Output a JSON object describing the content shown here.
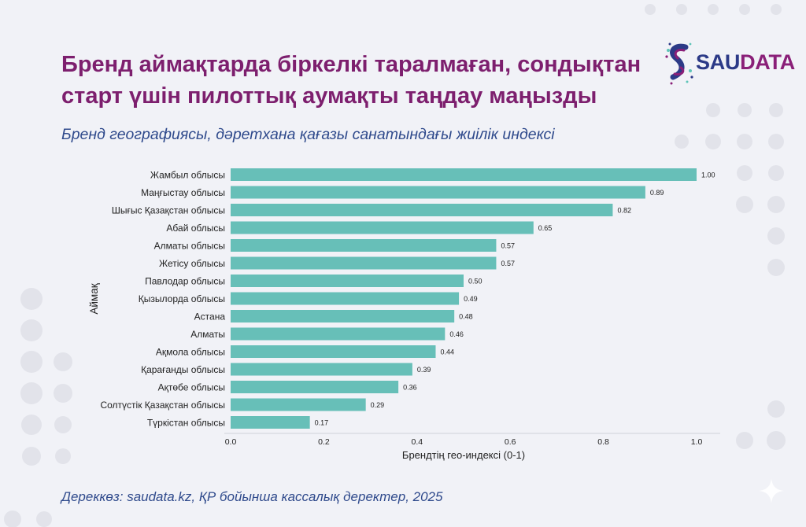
{
  "header": {
    "title_line1": "Бренд аймақтарда біркелкі таралмаған, сондықтан",
    "title_line2": "старт үшін пилоттық аумақты таңдау маңызды",
    "subtitle": "Бренд географиясы, дәретхана қағазы санатындағы жиілік индексі"
  },
  "logo": {
    "text_a": "SAU",
    "text_b": "DATA"
  },
  "footer": {
    "source": "Дереккөз: saudata.kz, ҚР бойынша кассалық деректер, 2025"
  },
  "colors": {
    "bar": "#67bfb8",
    "title": "#7d1f6e",
    "subtitle": "#2f4a8c",
    "logo_dark": "#2c3a87",
    "logo_magenta": "#8a1f78"
  },
  "chart_data": {
    "type": "bar",
    "orientation": "horizontal",
    "categories": [
      "Жамбыл облысы",
      "Маңғыстау облысы",
      "Шығыс Қазақстан облысы",
      "Абай облысы",
      "Алматы облысы",
      "Жетісу облысы",
      "Павлодар облысы",
      "Қызылорда облысы",
      "Астана",
      "Алматы",
      "Ақмола облысы",
      "Қарағанды облысы",
      "Ақтөбе облысы",
      "Солтүстік Қазақстан облысы",
      "Түркістан облысы"
    ],
    "values": [
      1.0,
      0.89,
      0.82,
      0.65,
      0.57,
      0.57,
      0.5,
      0.49,
      0.48,
      0.46,
      0.44,
      0.39,
      0.36,
      0.29,
      0.17
    ],
    "value_labels": [
      "1.00",
      "0.89",
      "0.82",
      "0.65",
      "0.57",
      "0.57",
      "0.50",
      "0.49",
      "0.48",
      "0.46",
      "0.44",
      "0.39",
      "0.36",
      "0.29",
      "0.17"
    ],
    "xlabel": "Брендтің гео-индексі (0-1)",
    "ylabel": "Аймақ",
    "xlim": [
      0,
      1.05
    ],
    "xticks": [
      0.0,
      0.2,
      0.4,
      0.6,
      0.8,
      1.0
    ],
    "xtick_labels": [
      "0.0",
      "0.2",
      "0.4",
      "0.6",
      "0.8",
      "1.0"
    ],
    "grid": false,
    "legend": "none"
  }
}
